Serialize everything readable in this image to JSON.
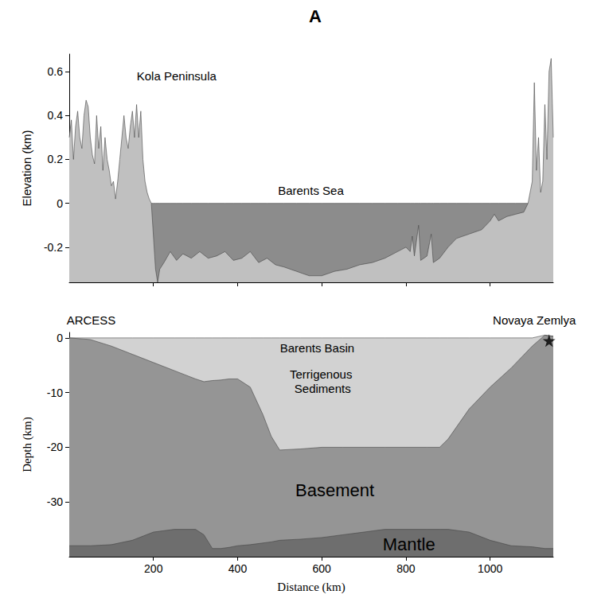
{
  "chart_data": [
    {
      "type": "area",
      "title": "A",
      "x": [
        0,
        5,
        10,
        15,
        20,
        25,
        30,
        35,
        40,
        45,
        50,
        55,
        60,
        65,
        70,
        75,
        80,
        85,
        90,
        95,
        100,
        105,
        110,
        115,
        120,
        125,
        130,
        135,
        140,
        145,
        150,
        155,
        160,
        165,
        170,
        175,
        180,
        185,
        190,
        195,
        200,
        205,
        210,
        215,
        225,
        240,
        255,
        270,
        290,
        310,
        330,
        350,
        370,
        390,
        410,
        430,
        450,
        470,
        490,
        510,
        540,
        570,
        600,
        630,
        660,
        690,
        720,
        750,
        780,
        800,
        810,
        815,
        820,
        830,
        835,
        850,
        860,
        865,
        880,
        900,
        920,
        950,
        980,
        1000,
        1010,
        1020,
        1040,
        1060,
        1080,
        1090,
        1095,
        1100,
        1105,
        1110,
        1115,
        1120,
        1125,
        1130,
        1135,
        1140,
        1145,
        1150
      ],
      "series": [
        {
          "color": "#8c8c8c",
          "values": [
            null,
            null,
            null,
            null,
            null,
            null,
            null,
            null,
            null,
            null,
            null,
            null,
            null,
            null,
            null,
            null,
            null,
            null,
            null,
            null,
            null,
            null,
            null,
            null,
            null,
            null,
            null,
            null,
            null,
            null,
            null,
            null,
            null,
            null,
            null,
            null,
            null,
            null,
            null,
            0,
            0,
            0,
            0,
            0,
            0,
            0,
            0,
            0,
            0,
            0,
            0,
            0,
            0,
            0,
            0,
            0,
            0,
            0,
            0,
            0,
            0,
            0,
            0,
            0,
            0,
            0,
            0,
            0,
            0,
            0,
            0,
            0,
            0,
            0,
            0,
            0,
            0,
            0,
            0,
            0,
            0,
            0,
            0,
            0,
            0,
            0,
            0,
            0,
            0,
            0,
            null,
            null,
            null,
            null,
            null,
            null,
            null,
            null,
            null,
            null,
            null,
            null
          ]
        },
        {
          "color": "#c0c0c0",
          "values": [
            0.3,
            0.38,
            0.2,
            0.35,
            0.42,
            0.3,
            0.25,
            0.4,
            0.47,
            0.44,
            0.3,
            0.22,
            0.18,
            0.4,
            0.25,
            0.35,
            0.15,
            0.3,
            0.2,
            0.15,
            0.08,
            0.1,
            0.02,
            0.1,
            0.2,
            0.3,
            0.4,
            0.3,
            0.25,
            0.35,
            0.42,
            0.3,
            0.45,
            0.3,
            0.42,
            0.2,
            0.1,
            0.05,
            0.02,
            0,
            -0.15,
            -0.3,
            -0.36,
            -0.3,
            -0.27,
            -0.22,
            -0.26,
            -0.23,
            -0.25,
            -0.22,
            -0.25,
            -0.24,
            -0.22,
            -0.26,
            -0.25,
            -0.22,
            -0.27,
            -0.25,
            -0.28,
            -0.29,
            -0.31,
            -0.33,
            -0.33,
            -0.31,
            -0.3,
            -0.28,
            -0.27,
            -0.25,
            -0.22,
            -0.2,
            -0.22,
            -0.15,
            -0.24,
            -0.1,
            -0.26,
            -0.24,
            -0.14,
            -0.27,
            -0.25,
            -0.2,
            -0.16,
            -0.14,
            -0.12,
            -0.08,
            -0.05,
            -0.08,
            -0.06,
            -0.05,
            -0.04,
            0,
            0.05,
            0.1,
            0.55,
            0.15,
            0.3,
            0.05,
            0.1,
            0.45,
            0.2,
            0.6,
            0.66,
            0.3
          ]
        }
      ],
      "xlim": [
        0,
        1150
      ],
      "xticks": [
        200,
        400,
        600,
        800,
        1000
      ],
      "ylim": [
        -0.36,
        0.68
      ],
      "yticks": [
        -0.2,
        0,
        0.2,
        0.4,
        0.6
      ],
      "ylabel": "Elevation (km)",
      "tick_labels": "y",
      "grid": false,
      "annotations": [
        {
          "text": "Kola Peninsula",
          "x": 255,
          "y": 0.58
        },
        {
          "text": "Barents Sea",
          "x": 574,
          "y": 0.06
        }
      ]
    },
    {
      "type": "area",
      "x": [
        0,
        50,
        100,
        150,
        200,
        250,
        300,
        320,
        340,
        360,
        380,
        400,
        430,
        460,
        480,
        500,
        550,
        600,
        650,
        700,
        750,
        800,
        850,
        880,
        900,
        950,
        1000,
        1050,
        1100,
        1130,
        1150
      ],
      "series": [
        {
          "color": "#d2d2d2",
          "values": [
            0,
            0,
            0,
            0,
            0,
            0,
            0,
            0,
            0,
            0,
            0,
            0,
            0,
            0,
            0,
            0,
            0,
            0,
            0,
            0,
            0,
            0,
            0,
            0,
            0,
            0,
            0,
            0,
            0,
            0.5,
            0.3
          ]
        },
        {
          "color": "#959595",
          "values": [
            0,
            -0.3,
            -1.5,
            -3,
            -4.5,
            -6,
            -7.5,
            -8,
            -7.8,
            -7.7,
            -7.5,
            -7.5,
            -9,
            -14,
            -18,
            -20.5,
            -20.3,
            -20,
            -20,
            -20,
            -20,
            -20,
            -20,
            -20,
            -18.5,
            -13,
            -9,
            -5.5,
            -1.5,
            0.5,
            0.3
          ]
        },
        {
          "color": "#6e6e6e",
          "values": [
            -38,
            -38,
            -37.8,
            -37,
            -35.5,
            -35,
            -35,
            -36,
            -38.5,
            -38.5,
            -38.3,
            -38,
            -37.8,
            -37.5,
            -37.3,
            -37,
            -36.8,
            -36.5,
            -36,
            -35.5,
            -35,
            -35,
            -35,
            -35,
            -35,
            -35.5,
            -37,
            -38,
            -38.2,
            -38.5,
            -38.5
          ]
        },
        {
          "type": "scatter",
          "marker": "star",
          "color": "#000000",
          "x": [
            1140
          ],
          "values": [
            -0.5
          ]
        }
      ],
      "xlim": [
        0,
        1150
      ],
      "xticks": [
        200,
        400,
        600,
        800,
        1000
      ],
      "ylim": [
        -40,
        1
      ],
      "yticks": [
        0,
        -10,
        -20,
        -30
      ],
      "xlabel": "Distance (km)",
      "ylabel": "Depth (km)",
      "grid": false,
      "annotations": [
        {
          "text": "ARCESS",
          "x": 52,
          "y": 3.2
        },
        {
          "text": "Novaya Zemlya",
          "x": 1105,
          "y": 3.3
        },
        {
          "text": "Barents Basin",
          "x": 589,
          "y": -1.8
        },
        {
          "text": "Terrigenous Sediments",
          "x": 602,
          "y": -8
        },
        {
          "text": "Basement",
          "x": 631,
          "y": -27.9
        },
        {
          "text": "Mantle",
          "x": 807,
          "y": -37.8
        }
      ]
    }
  ]
}
